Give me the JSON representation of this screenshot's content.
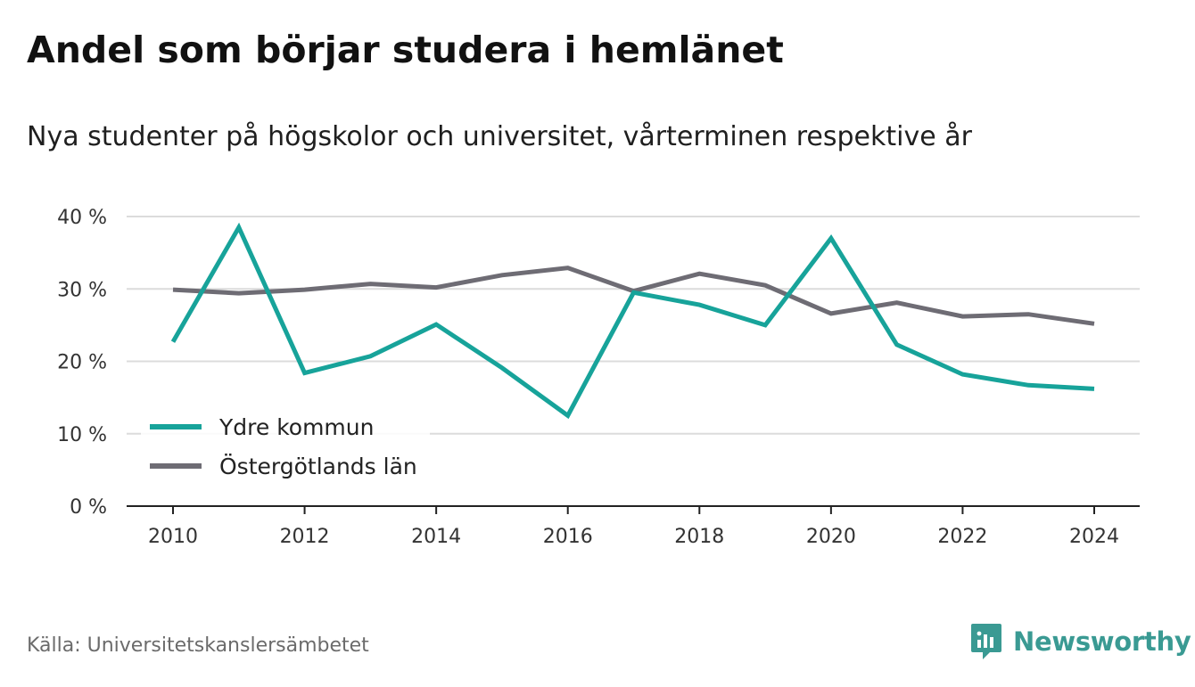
{
  "header": {
    "title": "Andel som börjar studera i hemlänet",
    "subtitle": "Nya studenter på högskolor och universitet, vårterminen respektive år"
  },
  "footer": {
    "source": "Källa: Universitetskanslersämbetet",
    "brand": "Newsworthy",
    "brand_icon": "bar-chart-speech-bubble-icon",
    "brand_color": "#3a9a93"
  },
  "chart_data": {
    "type": "line",
    "title": "Andel som börjar studera i hemlänet",
    "subtitle": "Nya studenter på högskolor och universitet, vårterminen respektive år",
    "xlabel": "",
    "ylabel": "",
    "x": [
      2010,
      2011,
      2012,
      2013,
      2014,
      2015,
      2016,
      2017,
      2018,
      2019,
      2020,
      2021,
      2022,
      2023,
      2024
    ],
    "xlim": [
      2010,
      2024
    ],
    "ylim": [
      0,
      40
    ],
    "x_ticks": [
      "2010",
      "2012",
      "2014",
      "2016",
      "2018",
      "2020",
      "2022",
      "2024"
    ],
    "x_tick_values": [
      2010,
      2012,
      2014,
      2016,
      2018,
      2020,
      2022,
      2024
    ],
    "y_ticks": [
      "0 %",
      "10 %",
      "20 %",
      "30 %",
      "40 %"
    ],
    "y_tick_values": [
      0,
      10,
      20,
      30,
      40
    ],
    "grid": "horizontal",
    "legend_position": "bottom-left",
    "series": [
      {
        "name": "Ydre kommun",
        "color": "#17a39a",
        "values": [
          22.7,
          38.5,
          18.4,
          20.7,
          25.1,
          19.1,
          12.5,
          29.5,
          27.8,
          25.0,
          37.0,
          22.3,
          18.2,
          16.7,
          16.2
        ]
      },
      {
        "name": "Östergötlands län",
        "color": "#6e6c74",
        "values": [
          29.9,
          29.4,
          29.9,
          30.7,
          30.2,
          31.9,
          32.9,
          29.7,
          32.1,
          30.5,
          26.6,
          28.1,
          26.2,
          26.5,
          25.2
        ]
      }
    ]
  }
}
